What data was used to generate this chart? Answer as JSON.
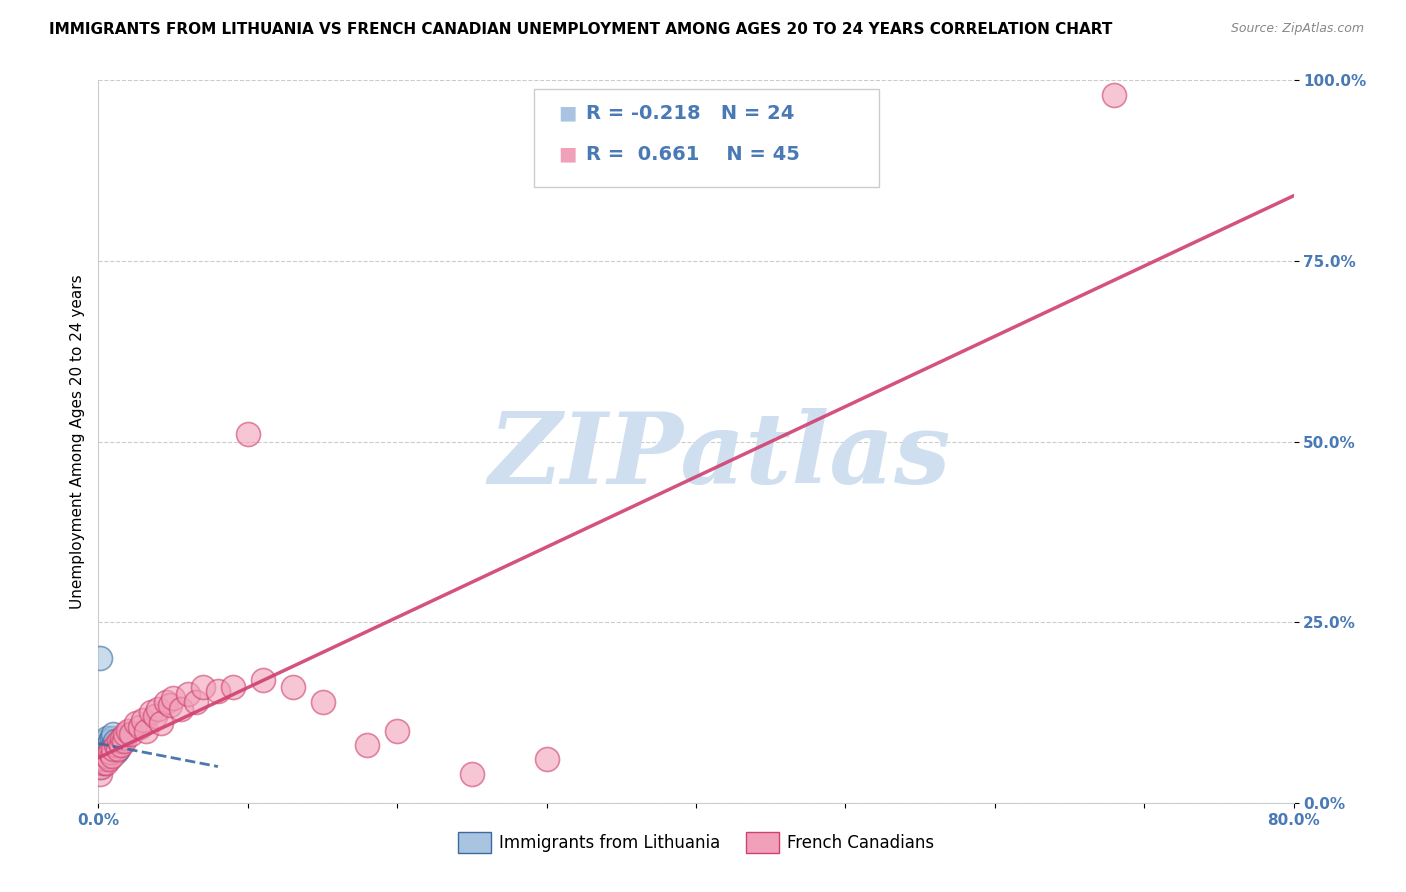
{
  "title": "IMMIGRANTS FROM LITHUANIA VS FRENCH CANADIAN UNEMPLOYMENT AMONG AGES 20 TO 24 YEARS CORRELATION CHART",
  "source": "Source: ZipAtlas.com",
  "ylabel": "Unemployment Among Ages 20 to 24 years",
  "xlim": [
    0.0,
    0.8
  ],
  "ylim": [
    0.0,
    1.0
  ],
  "xticks": [
    0.0,
    0.1,
    0.2,
    0.3,
    0.4,
    0.5,
    0.6,
    0.7,
    0.8
  ],
  "ytick_positions": [
    0.0,
    0.25,
    0.5,
    0.75,
    1.0
  ],
  "ytick_labels": [
    "0.0%",
    "25.0%",
    "50.0%",
    "75.0%",
    "100.0%"
  ],
  "legend_R_blue": "-0.218",
  "legend_N_blue": "24",
  "legend_R_pink": "0.661",
  "legend_N_pink": "45",
  "blue_color": "#a8c4e0",
  "blue_line_color": "#3a6aa0",
  "pink_color": "#f0a0b8",
  "pink_line_color": "#d04070",
  "watermark": "ZIPatlas",
  "watermark_color": "#d0dff0",
  "background_color": "#ffffff",
  "blue_scatter_x": [
    0.001,
    0.002,
    0.002,
    0.003,
    0.003,
    0.003,
    0.004,
    0.004,
    0.005,
    0.005,
    0.006,
    0.006,
    0.007,
    0.007,
    0.008,
    0.008,
    0.009,
    0.01,
    0.01,
    0.011,
    0.012,
    0.013,
    0.014,
    0.001
  ],
  "blue_scatter_y": [
    0.05,
    0.06,
    0.065,
    0.07,
    0.055,
    0.075,
    0.08,
    0.06,
    0.07,
    0.085,
    0.065,
    0.09,
    0.075,
    0.08,
    0.07,
    0.085,
    0.09,
    0.08,
    0.095,
    0.085,
    0.07,
    0.075,
    0.08,
    0.2
  ],
  "pink_scatter_x": [
    0.001,
    0.002,
    0.003,
    0.004,
    0.005,
    0.006,
    0.007,
    0.008,
    0.009,
    0.01,
    0.012,
    0.013,
    0.014,
    0.015,
    0.016,
    0.017,
    0.018,
    0.02,
    0.022,
    0.025,
    0.028,
    0.03,
    0.032,
    0.035,
    0.038,
    0.04,
    0.042,
    0.045,
    0.048,
    0.05,
    0.055,
    0.06,
    0.065,
    0.07,
    0.08,
    0.09,
    0.1,
    0.11,
    0.13,
    0.15,
    0.18,
    0.2,
    0.25,
    0.3,
    0.68
  ],
  "pink_scatter_y": [
    0.04,
    0.05,
    0.055,
    0.06,
    0.055,
    0.065,
    0.06,
    0.07,
    0.065,
    0.075,
    0.08,
    0.075,
    0.085,
    0.08,
    0.09,
    0.085,
    0.095,
    0.1,
    0.095,
    0.11,
    0.105,
    0.115,
    0.1,
    0.125,
    0.12,
    0.13,
    0.11,
    0.14,
    0.135,
    0.145,
    0.13,
    0.15,
    0.14,
    0.16,
    0.155,
    0.16,
    0.51,
    0.17,
    0.16,
    0.14,
    0.08,
    0.1,
    0.04,
    0.06,
    0.98
  ],
  "title_fontsize": 11,
  "axis_label_fontsize": 11,
  "tick_fontsize": 11,
  "legend_fontsize": 14,
  "watermark_fontsize": 72
}
